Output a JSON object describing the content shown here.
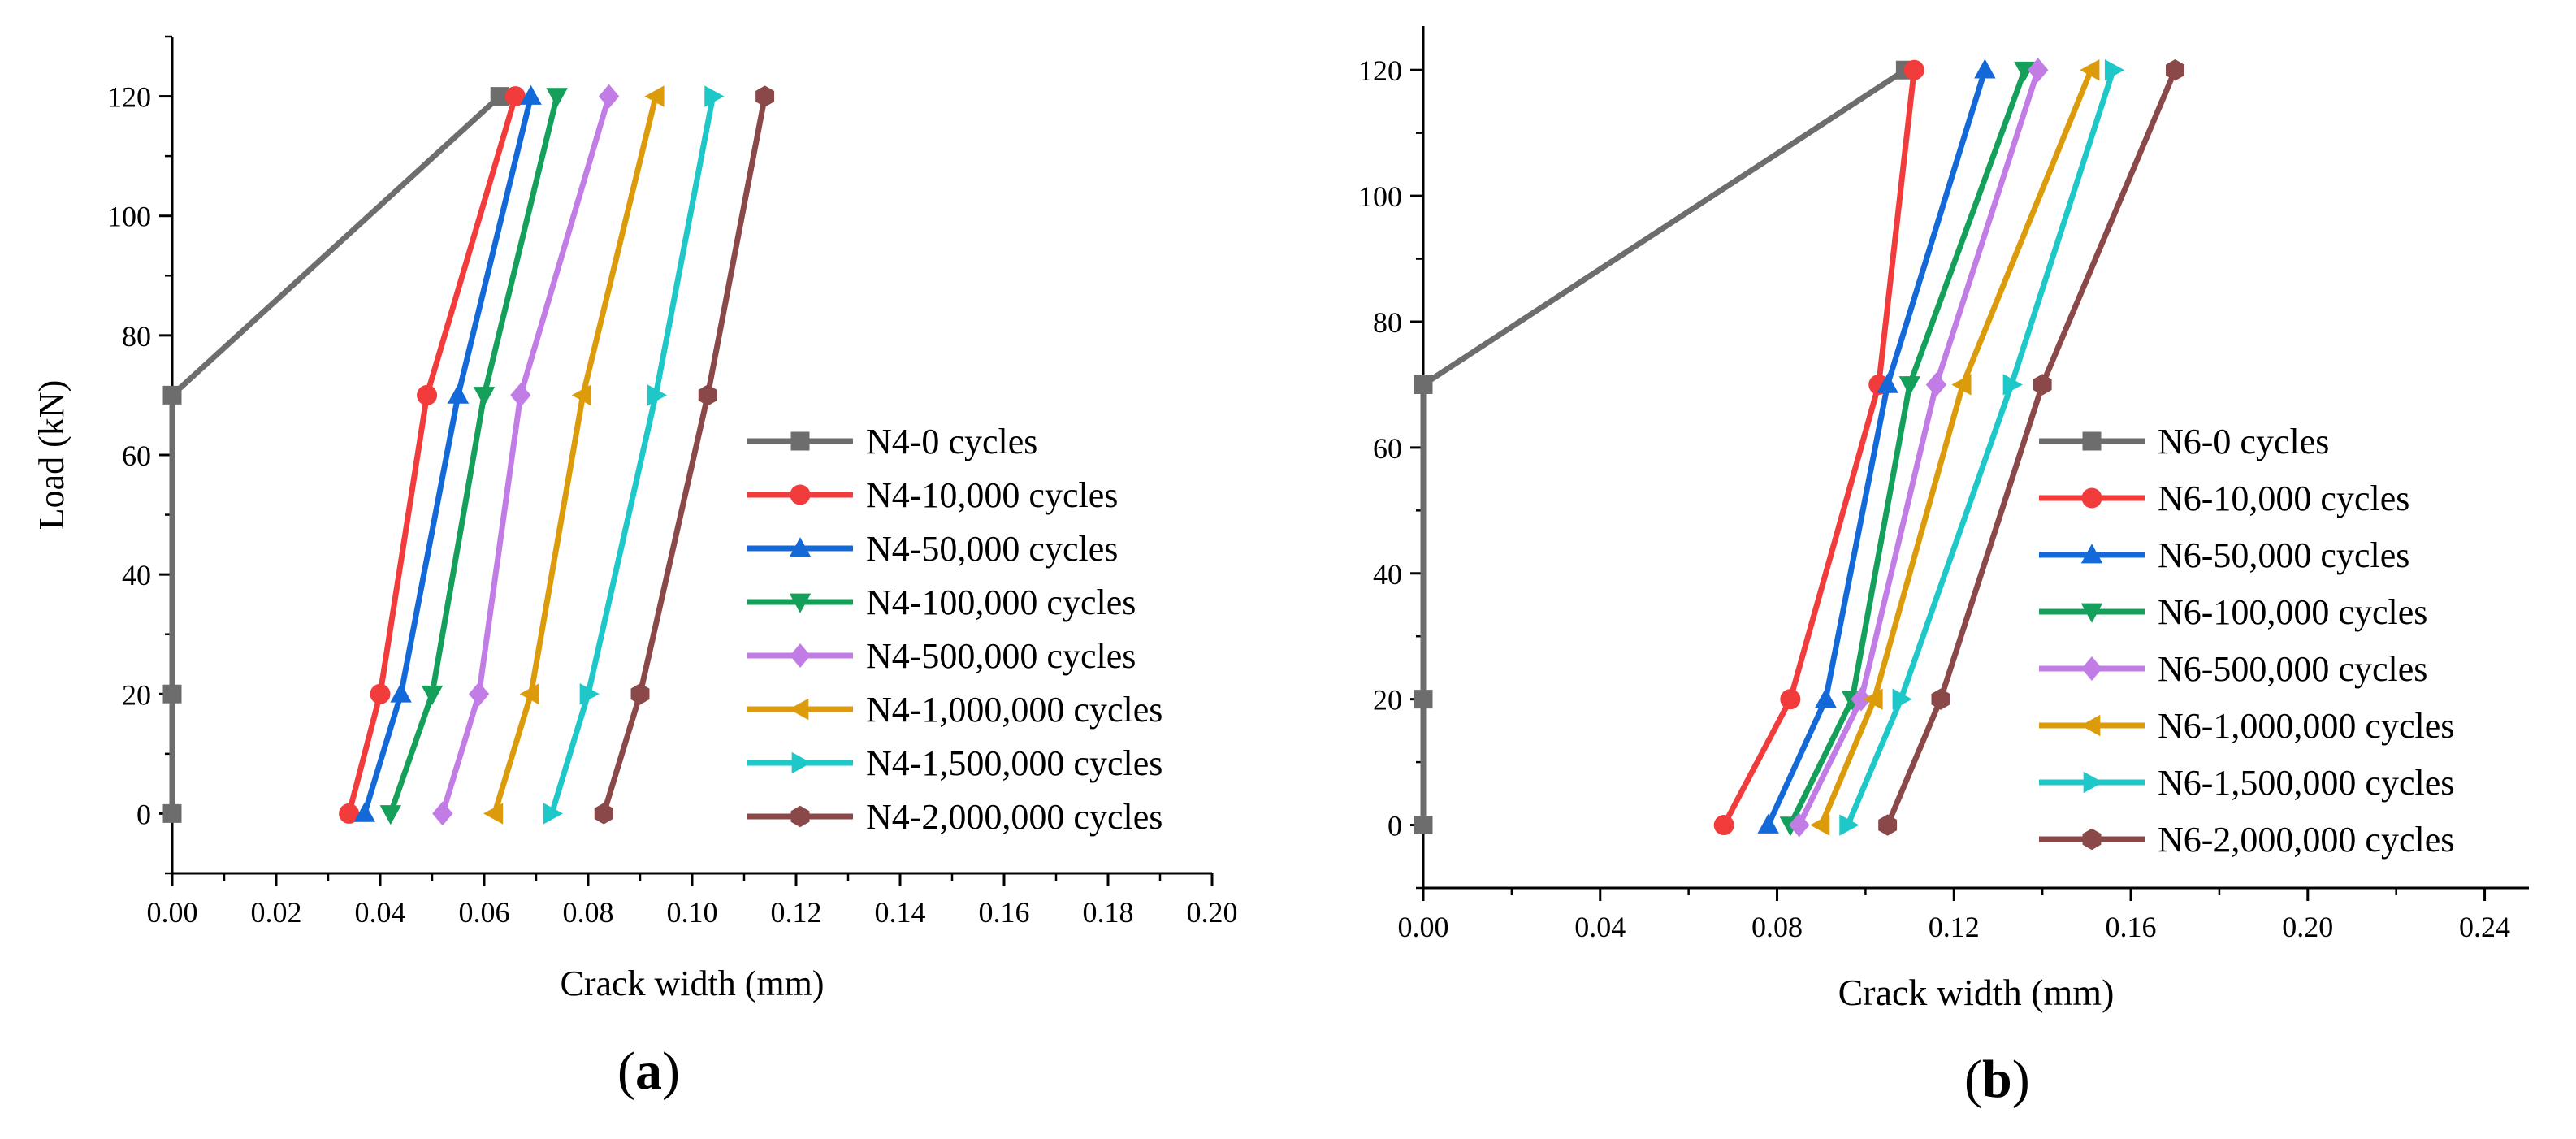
{
  "chart_data": [
    {
      "type": "line",
      "panel_label": "(a)",
      "title": "",
      "xlabel": "Crack width (mm)",
      "ylabel": "Load (kN)",
      "xlim": [
        0,
        0.2
      ],
      "ylim": [
        -10,
        130
      ],
      "xticks": [
        0,
        0.02,
        0.04,
        0.06,
        0.08,
        0.1,
        0.12,
        0.14,
        0.16,
        0.18,
        0.2
      ],
      "xtick_labels": [
        "0.00",
        "0.02",
        "0.04",
        "0.06",
        "0.08",
        "0.10",
        "0.12",
        "0.14",
        "0.16",
        "0.18",
        "0.20"
      ],
      "yticks": [
        0,
        20,
        40,
        60,
        80,
        100,
        120
      ],
      "ytick_labels": [
        "0",
        "20",
        "40",
        "60",
        "80",
        "100",
        "120"
      ],
      "y": [
        0,
        20,
        70,
        120
      ],
      "legend_position": "center-right",
      "series": [
        {
          "name": "N4-0 cycles",
          "color": "#6d6d6d",
          "marker": "square",
          "x": [
            0.0,
            0.0,
            0.0,
            0.063
          ],
          "y": [
            0,
            20,
            70,
            120
          ]
        },
        {
          "name": "N4-10,000 cycles",
          "color": "#f23b3b",
          "marker": "circle",
          "x": [
            0.034,
            0.04,
            0.049,
            0.066
          ],
          "y": [
            0,
            20,
            70,
            120
          ]
        },
        {
          "name": "N4-50,000 cycles",
          "color": "#1469d9",
          "marker": "triangle-up",
          "x": [
            0.037,
            0.044,
            0.055,
            0.069
          ],
          "y": [
            0,
            20,
            70,
            120
          ]
        },
        {
          "name": "N4-100,000 cycles",
          "color": "#14a05a",
          "marker": "triangle-down",
          "x": [
            0.042,
            0.05,
            0.06,
            0.074
          ],
          "y": [
            0,
            20,
            70,
            120
          ]
        },
        {
          "name": "N4-500,000 cycles",
          "color": "#c27ce6",
          "marker": "diamond",
          "x": [
            0.052,
            0.059,
            0.067,
            0.084
          ],
          "y": [
            0,
            20,
            70,
            120
          ]
        },
        {
          "name": "N4-1,000,000 cycles",
          "color": "#dc9b0a",
          "marker": "triangle-left",
          "x": [
            0.062,
            0.069,
            0.079,
            0.093
          ],
          "y": [
            0,
            20,
            70,
            120
          ]
        },
        {
          "name": "N4-1,500,000 cycles",
          "color": "#1ec8c8",
          "marker": "triangle-right",
          "x": [
            0.073,
            0.08,
            0.093,
            0.104
          ],
          "y": [
            0,
            20,
            70,
            120
          ]
        },
        {
          "name": "N4-2,000,000 cycles",
          "color": "#8b4848",
          "marker": "hexagon",
          "x": [
            0.083,
            0.09,
            0.103,
            0.114
          ],
          "y": [
            0,
            20,
            70,
            120
          ]
        }
      ]
    },
    {
      "type": "line",
      "panel_label": "(b)",
      "title": "",
      "xlabel": "Crack width (mm)",
      "ylabel": "",
      "xlim": [
        0,
        0.25
      ],
      "ylim": [
        -10,
        127
      ],
      "xticks": [
        0,
        0.04,
        0.08,
        0.12,
        0.16,
        0.2,
        0.24
      ],
      "xtick_labels": [
        "0.00",
        "0.04",
        "0.08",
        "0.12",
        "0.16",
        "0.20",
        "0.24"
      ],
      "yticks": [
        0,
        20,
        40,
        60,
        80,
        100,
        120
      ],
      "ytick_labels": [
        "0",
        "20",
        "40",
        "60",
        "80",
        "100",
        "120"
      ],
      "y": [
        0,
        20,
        70,
        120
      ],
      "legend_position": "center-right",
      "series": [
        {
          "name": "N6-0 cycles",
          "color": "#6d6d6d",
          "marker": "square",
          "x": [
            0.0,
            0.0,
            0.0,
            0.109
          ],
          "y": [
            0,
            20,
            70,
            120
          ]
        },
        {
          "name": "N6-10,000 cycles",
          "color": "#f23b3b",
          "marker": "circle",
          "x": [
            0.068,
            0.083,
            0.103,
            0.111
          ],
          "y": [
            0,
            20,
            70,
            120
          ]
        },
        {
          "name": "N6-50,000 cycles",
          "color": "#1469d9",
          "marker": "triangle-up",
          "x": [
            0.078,
            0.091,
            0.105,
            0.127
          ],
          "y": [
            0,
            20,
            70,
            120
          ]
        },
        {
          "name": "N6-100,000 cycles",
          "color": "#14a05a",
          "marker": "triangle-down",
          "x": [
            0.083,
            0.097,
            0.11,
            0.136
          ],
          "y": [
            0,
            20,
            70,
            120
          ]
        },
        {
          "name": "N6-500,000 cycles",
          "color": "#c27ce6",
          "marker": "diamond",
          "x": [
            0.085,
            0.099,
            0.116,
            0.139
          ],
          "y": [
            0,
            20,
            70,
            120
          ]
        },
        {
          "name": "N6-1,000,000 cycles",
          "color": "#dc9b0a",
          "marker": "triangle-left",
          "x": [
            0.09,
            0.102,
            0.122,
            0.151
          ],
          "y": [
            0,
            20,
            70,
            120
          ]
        },
        {
          "name": "N6-1,500,000 cycles",
          "color": "#1ec8c8",
          "marker": "triangle-right",
          "x": [
            0.096,
            0.108,
            0.133,
            0.156
          ],
          "y": [
            0,
            20,
            70,
            120
          ]
        },
        {
          "name": "N6-2,000,000 cycles",
          "color": "#8b4848",
          "marker": "hexagon",
          "x": [
            0.105,
            0.117,
            0.14,
            0.17
          ],
          "y": [
            0,
            20,
            70,
            120
          ]
        }
      ]
    }
  ]
}
